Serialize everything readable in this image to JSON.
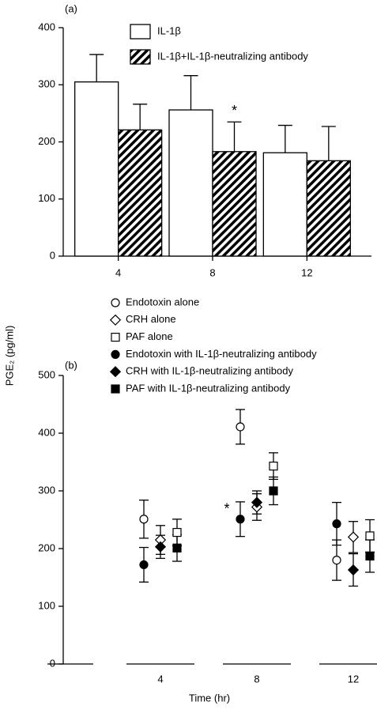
{
  "chart_data": [
    {
      "type": "bar",
      "panel_label": "(a)",
      "ylabel": "PGE₂ (pg/ml)",
      "categories": [
        "4",
        "8",
        "12"
      ],
      "series": [
        {
          "name": "IL-1β",
          "color": "#000000",
          "hatch": false,
          "values": [
            305,
            256,
            181
          ],
          "errors": [
            48,
            60,
            48
          ]
        },
        {
          "name": "IL-1β+IL-1β-neutralizing antibody",
          "color": "#000000",
          "hatch": true,
          "values": [
            221,
            183,
            167
          ],
          "errors": [
            45,
            52,
            60
          ]
        }
      ],
      "annotation": "*",
      "ylim": [
        0,
        400
      ],
      "yticks": [
        0,
        100,
        200,
        300,
        400
      ]
    },
    {
      "type": "scatter",
      "panel_label": "(b)",
      "xlabel": "Time (hr)",
      "categories": [
        "4",
        "8",
        "12"
      ],
      "series": [
        {
          "name": "Endotoxin alone",
          "marker": "circle",
          "filled": false,
          "color": "#000000",
          "values": [
            251,
            411,
            180
          ],
          "errors": [
            33,
            30,
            35
          ]
        },
        {
          "name": "CRH alone",
          "marker": "diamond",
          "filled": false,
          "color": "#000000",
          "values": [
            215,
            272,
            220
          ],
          "errors": [
            25,
            23,
            27
          ]
        },
        {
          "name": "PAF alone",
          "marker": "square",
          "filled": false,
          "color": "#000000",
          "values": [
            228,
            343,
            222
          ],
          "errors": [
            23,
            23,
            28
          ]
        },
        {
          "name": "Endotoxin with IL-1β-neutralizing antibody",
          "marker": "circle",
          "filled": true,
          "color": "#000000",
          "values": [
            172,
            251,
            243
          ],
          "errors": [
            30,
            30,
            37
          ]
        },
        {
          "name": "CRH with IL-1β-neutralizing antibody",
          "marker": "diamond",
          "filled": true,
          "color": "#000000",
          "values": [
            203,
            280,
            163
          ],
          "errors": [
            20,
            20,
            28
          ]
        },
        {
          "name": "PAF with IL-1β-neutralizing antibody",
          "marker": "square",
          "filled": true,
          "color": "#000000",
          "values": [
            201,
            300,
            187
          ],
          "errors": [
            23,
            24,
            28
          ]
        }
      ],
      "annotation": "*",
      "ylim": [
        0,
        500
      ],
      "yticks": [
        0,
        100,
        200,
        300,
        400,
        500
      ]
    }
  ]
}
